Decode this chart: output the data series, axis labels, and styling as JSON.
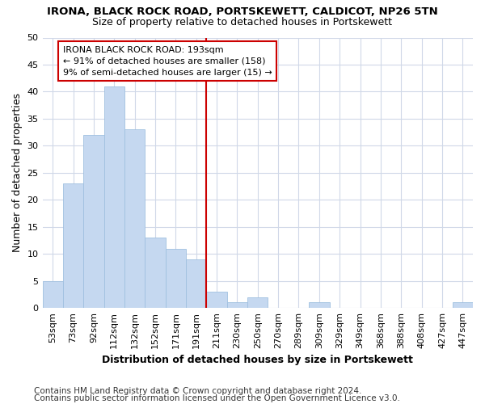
{
  "title": "IRONA, BLACK ROCK ROAD, PORTSKEWETT, CALDICOT, NP26 5TN",
  "subtitle": "Size of property relative to detached houses in Portskewett",
  "xlabel": "Distribution of detached houses by size in Portskewett",
  "ylabel": "Number of detached properties",
  "categories": [
    "53sqm",
    "73sqm",
    "92sqm",
    "112sqm",
    "132sqm",
    "152sqm",
    "171sqm",
    "191sqm",
    "211sqm",
    "230sqm",
    "250sqm",
    "270sqm",
    "289sqm",
    "309sqm",
    "329sqm",
    "349sqm",
    "368sqm",
    "388sqm",
    "408sqm",
    "427sqm",
    "447sqm"
  ],
  "values": [
    5,
    23,
    32,
    41,
    33,
    13,
    11,
    9,
    3,
    1,
    2,
    0,
    0,
    1,
    0,
    0,
    0,
    0,
    0,
    0,
    1
  ],
  "bar_color": "#c5d8f0",
  "bar_edge_color": "#a0c0e0",
  "vline_color": "#cc0000",
  "vline_x_idx": 7.5,
  "annotation_line1": "IRONA BLACK ROCK ROAD: 193sqm",
  "annotation_line2": "← 91% of detached houses are smaller (158)",
  "annotation_line3": "9% of semi-detached houses are larger (15) →",
  "annotation_box_color": "#ffffff",
  "annotation_box_edge": "#cc0000",
  "ylim": [
    0,
    50
  ],
  "yticks": [
    0,
    5,
    10,
    15,
    20,
    25,
    30,
    35,
    40,
    45,
    50
  ],
  "footer1": "Contains HM Land Registry data © Crown copyright and database right 2024.",
  "footer2": "Contains public sector information licensed under the Open Government Licence v3.0.",
  "bg_color": "#ffffff",
  "plot_bg_color": "#ffffff",
  "grid_color": "#d0d8e8",
  "title_fontsize": 9.5,
  "subtitle_fontsize": 9,
  "axis_label_fontsize": 9,
  "tick_fontsize": 8,
  "footer_fontsize": 7.5,
  "annotation_fontsize": 8
}
